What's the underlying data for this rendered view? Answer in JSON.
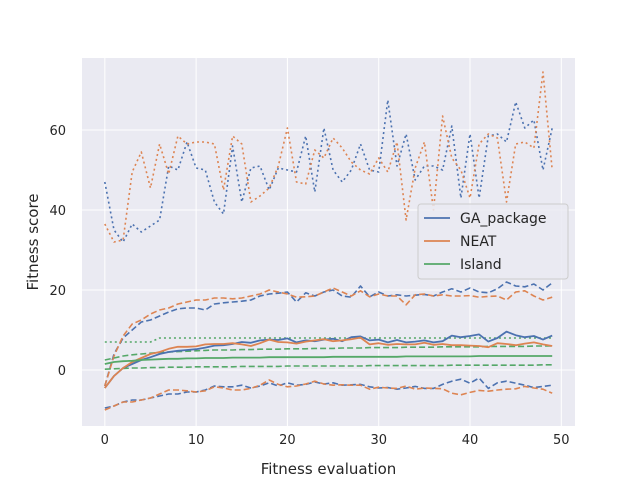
{
  "chart_data": {
    "type": "line",
    "xlabel": "Fitness evaluation",
    "ylabel": "Fitness score",
    "xlim": [
      -2.5,
      51.5
    ],
    "ylim": [
      -14,
      78
    ],
    "xticks": [
      0,
      10,
      20,
      30,
      40,
      50
    ],
    "yticks": [
      0,
      20,
      40,
      60
    ],
    "grid": true,
    "legend_position": "center-right",
    "legend": [
      "GA_package",
      "NEAT",
      "Island"
    ],
    "x": [
      0,
      1,
      2,
      3,
      4,
      5,
      6,
      7,
      8,
      9,
      10,
      11,
      12,
      13,
      14,
      15,
      16,
      17,
      18,
      19,
      20,
      21,
      22,
      23,
      24,
      25,
      26,
      27,
      28,
      29,
      30,
      31,
      32,
      33,
      34,
      35,
      36,
      37,
      38,
      39,
      40,
      41,
      42,
      43,
      44,
      45,
      46,
      47,
      48,
      49
    ],
    "series": [
      {
        "name": "GA_package",
        "color": "#4c72b0",
        "mean": [
          -4.5,
          -1.5,
          0.5,
          1.5,
          2.5,
          3.2,
          4,
          4.5,
          4.8,
          5,
          5.2,
          5.6,
          6.1,
          6.2,
          6.5,
          7,
          6.8,
          7.4,
          7.6,
          7.5,
          7.9,
          6.9,
          7.4,
          7.2,
          7.6,
          7.8,
          7.2,
          8.2,
          8.4,
          7.4,
          7.6,
          6.9,
          7.5,
          6.9,
          7.1,
          7.4,
          6.9,
          7.2,
          8.6,
          8.2,
          8.5,
          8.9,
          7.1,
          8,
          9.6,
          8.7,
          8.2,
          8.5,
          7.6,
          8.6
        ],
        "upper": [
          -4,
          4,
          8,
          10,
          12,
          12.5,
          13.5,
          14.5,
          15.3,
          15.5,
          15.5,
          15,
          16.5,
          16.8,
          17,
          17.2,
          17.5,
          18.5,
          19,
          19.2,
          19.5,
          17,
          19.3,
          18.5,
          19.5,
          20,
          18.5,
          18.2,
          21,
          18.3,
          19.5,
          18.5,
          18.8,
          18.5,
          18.7,
          18.9,
          18.5,
          19.5,
          20.3,
          19.5,
          20.5,
          19.5,
          19.3,
          20.3,
          22,
          21,
          20.8,
          21.5,
          20,
          21.8
        ],
        "lower": [
          -9.5,
          -9,
          -8,
          -7.5,
          -7.5,
          -7,
          -6.5,
          -6,
          -6,
          -5.5,
          -5.5,
          -5,
          -4,
          -4.2,
          -4.2,
          -3.8,
          -4.5,
          -4,
          -3.2,
          -4,
          -3.2,
          -3.8,
          -3.6,
          -3,
          -3.5,
          -3.2,
          -3.8,
          -3.7,
          -3.6,
          -4.2,
          -4.5,
          -4.4,
          -4.8,
          -4.5,
          -4.1,
          -4.6,
          -4.6,
          -3.6,
          -2.8,
          -2.3,
          -3.3,
          -2,
          -4.6,
          -3.2,
          -2.8,
          -3.3,
          -3.8,
          -4.4,
          -4.1,
          -3.8
        ],
        "max": [
          47,
          35,
          32,
          36.5,
          34.5,
          36,
          37.5,
          51,
          50,
          57,
          50.5,
          50,
          42,
          39,
          56,
          42,
          50.5,
          51,
          45,
          50.5,
          50,
          49.5,
          58.5,
          44.5,
          60.5,
          50,
          47,
          50,
          56.5,
          50,
          49.5,
          67.5,
          51,
          59,
          47.5,
          51,
          51,
          50,
          61,
          43,
          59,
          43,
          58.5,
          59,
          57,
          67,
          60.5,
          62.5,
          50,
          60.5
        ]
      },
      {
        "name": "NEAT",
        "color": "#dd8452",
        "mean": [
          -4.5,
          -1.5,
          0.5,
          2,
          3,
          4,
          4.5,
          5.3,
          5.8,
          5.8,
          5.9,
          6.4,
          6.5,
          6.5,
          6.7,
          6.4,
          6,
          6.7,
          7.6,
          7,
          6.9,
          6.6,
          7.1,
          7.4,
          7.7,
          7.2,
          7.4,
          7.7,
          8.1,
          6.4,
          6.7,
          6.3,
          6.5,
          6.4,
          6.4,
          6.8,
          6.3,
          6.5,
          6.2,
          6.2,
          6.1,
          6,
          5.7,
          6.7,
          6.5,
          6.2,
          6.6,
          6.9,
          6.4,
          6
        ],
        "upper": [
          -4,
          3.5,
          8.5,
          11.5,
          12.5,
          14,
          15,
          15.5,
          16.5,
          17,
          17.5,
          17.5,
          18,
          18,
          17.8,
          18,
          18.5,
          19,
          20,
          19.5,
          19,
          18.2,
          18.3,
          18.5,
          19.5,
          20.5,
          19.5,
          18.5,
          19.8,
          18.3,
          19,
          18.5,
          18.5,
          16.3,
          18.8,
          19,
          18.5,
          18.8,
          18.5,
          18.5,
          18.6,
          18.2,
          18.4,
          18.5,
          17.5,
          19.5,
          19.8,
          18.5,
          17.5,
          18.2
        ],
        "lower": [
          -10,
          -9,
          -8,
          -8,
          -7.5,
          -7,
          -6,
          -5,
          -5,
          -5.2,
          -5.5,
          -5.2,
          -4.2,
          -4.5,
          -5,
          -5,
          -4.6,
          -3.8,
          -2.5,
          -3.6,
          -4.2,
          -4,
          -3.5,
          -2.8,
          -3.5,
          -3.8,
          -3.7,
          -3.8,
          -3.8,
          -4.8,
          -4.3,
          -4.5,
          -4.6,
          -4,
          -4.8,
          -4.5,
          -4.6,
          -4.7,
          -5.8,
          -6.2,
          -5.6,
          -5.1,
          -5.3,
          -5,
          -4.8,
          -4.7,
          -4.1,
          -4.5,
          -4.8,
          -5.8
        ],
        "max": [
          36.5,
          32,
          32.5,
          49.5,
          54.5,
          45.5,
          56.5,
          49,
          58.5,
          56.5,
          57,
          57,
          56.5,
          45,
          58.5,
          56.5,
          42,
          43.5,
          45.5,
          51,
          60.5,
          47,
          46.5,
          55,
          53,
          58,
          55.5,
          52,
          50,
          49,
          53,
          49.5,
          57,
          37.5,
          50.5,
          57,
          40,
          63.5,
          53,
          50,
          43,
          56.5,
          59,
          58,
          42,
          56.5,
          57,
          55.5,
          74.5,
          50
        ]
      },
      {
        "name": "Island",
        "color": "#55a868",
        "mean": [
          1.5,
          2,
          2.2,
          2.3,
          2.5,
          2.6,
          2.7,
          2.8,
          2.8,
          2.9,
          2.9,
          3,
          3,
          3,
          3.1,
          3.1,
          3.1,
          3.1,
          3.2,
          3.2,
          3.2,
          3.2,
          3.2,
          3.2,
          3.2,
          3.3,
          3.3,
          3.3,
          3.3,
          3.3,
          3.3,
          3.3,
          3.3,
          3.4,
          3.4,
          3.4,
          3.4,
          3.4,
          3.4,
          3.4,
          3.4,
          3.5,
          3.5,
          3.5,
          3.5,
          3.5,
          3.5,
          3.5,
          3.5,
          3.5
        ],
        "upper": [
          2.5,
          3,
          3.5,
          3.8,
          4,
          4.2,
          4.4,
          4.5,
          4.6,
          4.7,
          4.8,
          4.9,
          5,
          5,
          5,
          5.1,
          5.1,
          5.2,
          5.2,
          5.2,
          5.3,
          5.3,
          5.3,
          5.4,
          5.4,
          5.4,
          5.5,
          5.5,
          5.5,
          5.6,
          5.6,
          5.6,
          5.6,
          5.7,
          5.7,
          5.7,
          5.7,
          5.8,
          5.8,
          5.8,
          5.8,
          5.8,
          5.9,
          5.9,
          5.9,
          5.9,
          5.9,
          6,
          6,
          6
        ],
        "lower": [
          0.2,
          0.3,
          0.4,
          0.5,
          0.5,
          0.6,
          0.6,
          0.7,
          0.7,
          0.7,
          0.8,
          0.8,
          0.8,
          0.8,
          0.8,
          0.9,
          0.9,
          0.9,
          0.9,
          0.9,
          1,
          1,
          1,
          1,
          1,
          1,
          1,
          1,
          1,
          1.1,
          1.1,
          1.1,
          1.1,
          1.1,
          1.1,
          1.1,
          1.1,
          1.1,
          1.2,
          1.2,
          1.2,
          1.2,
          1.2,
          1.2,
          1.2,
          1.2,
          1.2,
          1.2,
          1.3,
          1.3
        ],
        "max": [
          7,
          7,
          7,
          7,
          7,
          7,
          8,
          8,
          8,
          8,
          8,
          8,
          8,
          8,
          8,
          8,
          8,
          8,
          8,
          8,
          8,
          8,
          8,
          8,
          8,
          8,
          8,
          8,
          8,
          8,
          8,
          8,
          8,
          8,
          8,
          8,
          8,
          8,
          8,
          8,
          8,
          8,
          8,
          8,
          8,
          8,
          8,
          8,
          8,
          8
        ]
      }
    ]
  }
}
